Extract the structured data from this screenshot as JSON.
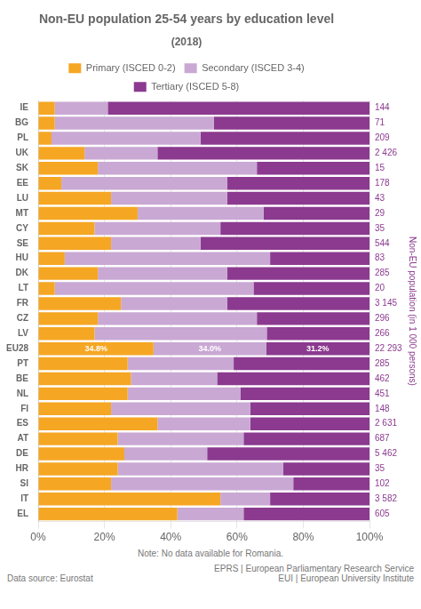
{
  "chart_data": {
    "type": "bar",
    "title": "Non-EU population 25-54 years by education level",
    "subtitle": "(2018)",
    "orientation": "horizontal",
    "stacked": true,
    "grid": true,
    "legend": "top",
    "data_labels": true,
    "categories": [
      "IE",
      "BG",
      "PL",
      "UK",
      "SK",
      "EE",
      "LU",
      "MT",
      "CY",
      "SE",
      "HU",
      "DK",
      "LT",
      "FR",
      "CZ",
      "LV",
      "EU28",
      "PT",
      "BE",
      "NL",
      "FI",
      "ES",
      "AT",
      "DE",
      "HR",
      "SI",
      "IT",
      "EL"
    ],
    "series": [
      {
        "name": "Primary (ISCED 0-2)",
        "color": "#f5a623",
        "values": [
          5,
          5,
          4,
          14,
          18,
          7,
          22,
          30,
          17,
          22,
          8,
          18,
          5,
          25,
          18,
          17,
          34.8,
          27,
          28,
          27,
          22,
          36,
          24,
          26,
          24,
          22,
          55,
          42
        ],
        "value_labels": [
          null,
          null,
          null,
          null,
          null,
          null,
          null,
          null,
          null,
          null,
          null,
          null,
          null,
          null,
          null,
          null,
          "34.8%",
          null,
          null,
          null,
          null,
          null,
          null,
          null,
          null,
          null,
          null,
          null
        ]
      },
      {
        "name": "Secondary (ISCED 3-4)",
        "color": "#c9a8d4",
        "values": [
          16,
          48,
          45,
          22,
          48,
          50,
          35,
          38,
          38,
          27,
          62,
          39,
          60,
          32,
          48,
          52,
          34.0,
          32,
          26,
          34,
          42,
          28,
          38,
          25,
          50,
          55,
          15,
          20
        ],
        "value_labels": [
          null,
          null,
          null,
          null,
          null,
          null,
          null,
          null,
          null,
          null,
          null,
          null,
          null,
          null,
          null,
          null,
          "34.0%",
          null,
          null,
          null,
          null,
          null,
          null,
          null,
          null,
          null,
          null,
          null
        ]
      },
      {
        "name": "Tertiary (ISCED 5-8)",
        "color": "#8b3a8f",
        "values": [
          79,
          47,
          51,
          64,
          34,
          43,
          43,
          32,
          45,
          51,
          30,
          43,
          35,
          43,
          34,
          31,
          31.2,
          41,
          46,
          39,
          36,
          36,
          38,
          49,
          26,
          23,
          30,
          38
        ],
        "value_labels": [
          null,
          null,
          null,
          null,
          null,
          null,
          null,
          null,
          null,
          null,
          null,
          null,
          null,
          null,
          null,
          null,
          "31.2%",
          null,
          null,
          null,
          null,
          null,
          null,
          null,
          null,
          null,
          null,
          null
        ]
      }
    ],
    "xlim": [
      0,
      100
    ],
    "xticks": [
      {
        "value": 0,
        "label": "0%"
      },
      {
        "value": 20,
        "label": "20%"
      },
      {
        "value": 40,
        "label": "40%"
      },
      {
        "value": 60,
        "label": "60%"
      },
      {
        "value": 80,
        "label": "80%"
      },
      {
        "value": 100,
        "label": "100%"
      }
    ],
    "population": {
      "label": "Non-EU population (in 1 000 persons)",
      "values": [
        144,
        71,
        209,
        2426,
        15,
        178,
        43,
        29,
        35,
        544,
        83,
        285,
        20,
        3145,
        296,
        266,
        22293,
        285,
        462,
        451,
        148,
        2631,
        687,
        5462,
        35,
        102,
        3582,
        605
      ],
      "value_labels": [
        "144",
        "71",
        "209",
        "2 426",
        "15",
        "178",
        "43",
        "29",
        "35",
        "544",
        "83",
        "285",
        "20",
        "3 145",
        "296",
        "266",
        "22 293",
        "285",
        "462",
        "451",
        "148",
        "2 631",
        "687",
        "5 462",
        "35",
        "102",
        "3 582",
        "605"
      ]
    },
    "annotations": [
      "Note: No data available for Romania.",
      "Data source: Eurostat",
      "EPRS | European Parliamentary Research Service",
      "EUI | European University Institute"
    ]
  }
}
